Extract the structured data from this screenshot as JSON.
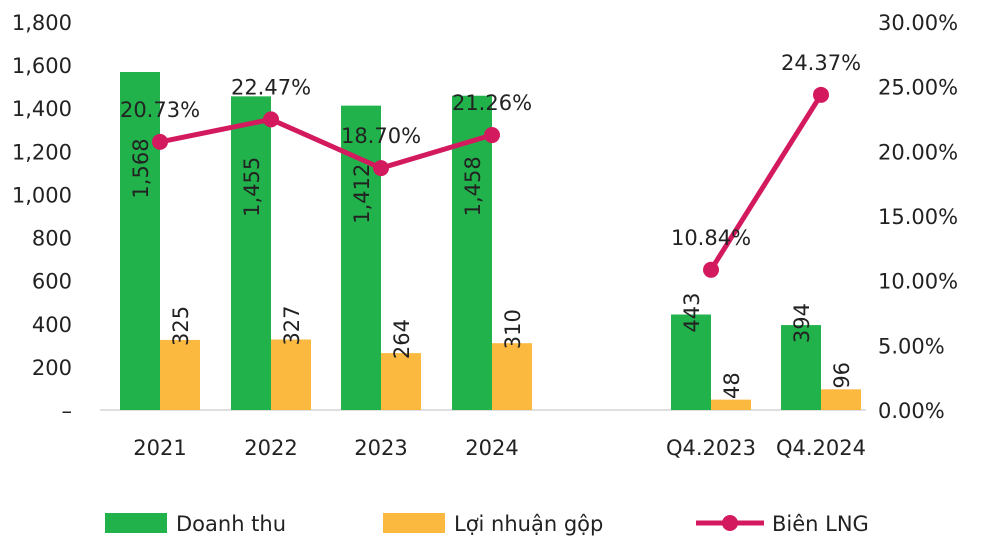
{
  "chart_data": {
    "type": "bar",
    "title": "",
    "categories": [
      "2021",
      "2022",
      "2023",
      "2024",
      "",
      "Q4.2023",
      "Q4.2024"
    ],
    "left_axis": {
      "range": [
        0,
        1800
      ],
      "ticks": [
        0,
        200,
        400,
        600,
        800,
        1000,
        1200,
        1400,
        1600,
        1800
      ],
      "tick_labels": [
        "–",
        "200",
        "400",
        "600",
        "800",
        "1,000",
        "1,200",
        "1,400",
        "1,600",
        "1,800"
      ]
    },
    "right_axis": {
      "range": [
        0,
        30
      ],
      "ticks": [
        0,
        5,
        10,
        15,
        20,
        25,
        30
      ],
      "tick_labels": [
        "0.00%",
        "5.00%",
        "10.00%",
        "15.00%",
        "20.00%",
        "25.00%",
        "30.00%"
      ]
    },
    "series": [
      {
        "name": "Doanh thu",
        "kind": "bar",
        "color": "#21B24B",
        "values": [
          1568,
          1455,
          1412,
          1458,
          null,
          443,
          394
        ],
        "labels": [
          "1,568",
          "1,455",
          "1,412",
          "1,458",
          "",
          "443",
          "394"
        ]
      },
      {
        "name": "Lợi nhuận gộp",
        "kind": "bar",
        "color": "#FBB93F",
        "values": [
          325,
          327,
          264,
          310,
          null,
          48,
          96
        ],
        "labels": [
          "325",
          "327",
          "264",
          "310",
          "",
          "48",
          "96"
        ]
      },
      {
        "name": "Biên LNG",
        "kind": "line",
        "axis": "right",
        "color": "#D41A5E",
        "values": [
          20.73,
          22.47,
          18.7,
          21.26,
          null,
          10.84,
          24.37
        ],
        "labels": [
          "20.73%",
          "22.47%",
          "18.70%",
          "21.26%",
          "",
          "10.84%",
          "24.37%"
        ]
      }
    ],
    "legend": {
      "position": "bottom",
      "entries": [
        "Doanh thu",
        "Lợi nhuận gộp",
        "Biên LNG"
      ]
    },
    "grid": false
  }
}
